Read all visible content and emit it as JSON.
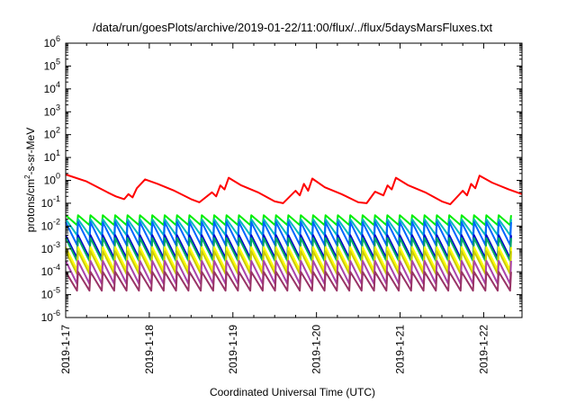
{
  "chart_data": {
    "type": "line",
    "title": "/data/run/goesPlots/archive/2019-01-22/11:00/flux/../flux/5daysMarsFluxes.txt",
    "xlabel": "Coordinated Universal Time (UTC)",
    "ylabel_main": "protons/cm",
    "ylabel_sup": "2",
    "ylabel_tail": "-s-sr-MeV",
    "y_scale": "log",
    "ylim": [
      1e-06,
      1000000.0
    ],
    "y_ticks": [
      {
        "base": "10",
        "exp": "-6",
        "value": 1e-06
      },
      {
        "base": "10",
        "exp": "-5",
        "value": 1e-05
      },
      {
        "base": "10",
        "exp": "-4",
        "value": 0.0001
      },
      {
        "base": "10",
        "exp": "-3",
        "value": 0.001
      },
      {
        "base": "10",
        "exp": "-2",
        "value": 0.01
      },
      {
        "base": "10",
        "exp": "-1",
        "value": 0.1
      },
      {
        "base": "10",
        "exp": "0",
        "value": 1
      },
      {
        "base": "10",
        "exp": "1",
        "value": 10
      },
      {
        "base": "10",
        "exp": "2",
        "value": 100
      },
      {
        "base": "10",
        "exp": "3",
        "value": 1000
      },
      {
        "base": "10",
        "exp": "4",
        "value": 10000
      },
      {
        "base": "10",
        "exp": "5",
        "value": 100000
      },
      {
        "base": "10",
        "exp": "6",
        "value": 1000000
      }
    ],
    "xlim": [
      "2019-01-17 00:00",
      "2019-01-22 11:00"
    ],
    "x_tick_labels": [
      "2019-1-17",
      "2019-1-18",
      "2019-1-19",
      "2019-1-20",
      "2019-1-21",
      "2019-1-22"
    ],
    "grid": false,
    "series": [
      {
        "color": "#ff0000",
        "x": [
          0,
          0.25,
          0.5,
          0.6,
          0.7,
          0.75,
          0.8,
          0.85,
          0.95,
          1.1,
          1.3,
          1.5,
          1.6,
          1.75,
          1.8,
          1.85,
          1.9,
          1.95,
          2.1,
          2.3,
          2.5,
          2.6,
          2.75,
          2.8,
          2.85,
          2.9,
          2.95,
          3.1,
          3.3,
          3.5,
          3.6,
          3.7,
          3.8,
          3.85,
          3.9,
          3.95,
          4.1,
          4.3,
          4.5,
          4.6,
          4.75,
          4.8,
          4.85,
          4.9,
          4.95,
          5.1,
          5.3,
          5.458
        ],
        "y": [
          1.8,
          0.9,
          0.3,
          0.2,
          0.15,
          0.25,
          0.18,
          0.45,
          1.1,
          0.7,
          0.35,
          0.15,
          0.11,
          0.3,
          0.2,
          0.6,
          0.4,
          1.3,
          0.6,
          0.3,
          0.12,
          0.1,
          0.35,
          0.22,
          0.7,
          0.35,
          1.2,
          0.5,
          0.25,
          0.11,
          0.1,
          0.32,
          0.22,
          0.6,
          0.4,
          1.3,
          0.6,
          0.3,
          0.12,
          0.09,
          0.35,
          0.22,
          0.7,
          0.45,
          1.6,
          0.8,
          0.4,
          0.25
        ]
      },
      {
        "color": "#00ee00",
        "period": 0.148,
        "peak": 0.03,
        "trough": 0.011
      },
      {
        "color": "#00bbbb",
        "period": 0.148,
        "peak": 0.02,
        "trough": 0.004
      },
      {
        "color": "#0066ff",
        "period": 0.148,
        "peak": 0.015,
        "trough": 0.0015
      },
      {
        "color": "#0000cc",
        "period": 0.148,
        "peak": 0.004,
        "trough": 0.0004
      },
      {
        "color": "#00aa66",
        "period": 0.148,
        "peak": 0.003,
        "trough": 0.0003
      },
      {
        "color": "#ffff00",
        "period": 0.148,
        "peak": 0.0012,
        "trough": 0.00012
      },
      {
        "color": "#cccc00",
        "period": 0.148,
        "peak": 0.0008,
        "trough": 8e-05
      },
      {
        "color": "#aa44aa",
        "period": 0.148,
        "peak": 0.0003,
        "trough": 3e-05
      },
      {
        "color": "#993366",
        "period": 0.148,
        "peak": 0.0001,
        "trough": 1.5e-05
      }
    ]
  }
}
